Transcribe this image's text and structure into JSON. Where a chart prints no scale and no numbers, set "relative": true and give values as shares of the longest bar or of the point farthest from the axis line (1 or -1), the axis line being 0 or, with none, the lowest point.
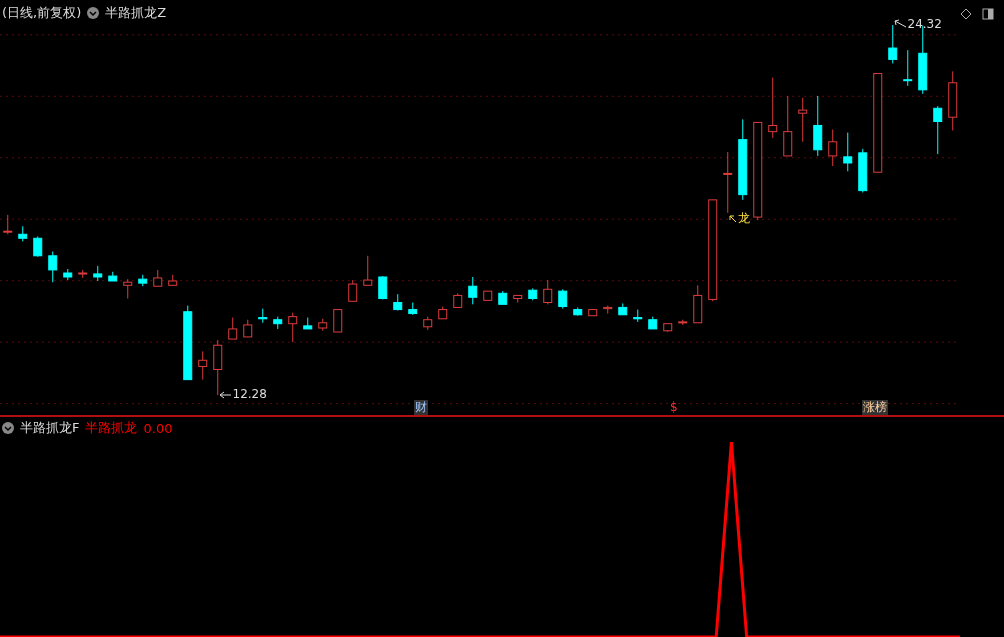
{
  "chart_data": [
    {
      "type": "candlestick",
      "title": "(日线,前复权)",
      "subtitle": "半路抓龙Z",
      "grid": "y",
      "yticks": [
        {
          "value": 12,
          "label": null
        },
        {
          "value": 14,
          "label": null
        },
        {
          "value": 16,
          "label": null
        },
        {
          "value": 18,
          "label": null
        },
        {
          "value": 20,
          "label": null
        },
        {
          "value": 22,
          "label": null
        },
        {
          "value": 24,
          "label": null
        }
      ],
      "categories": [
        null,
        null,
        null,
        null,
        null,
        null,
        null,
        null,
        null,
        null,
        null,
        null,
        null,
        null,
        null,
        null,
        null,
        null,
        null,
        null,
        null,
        null,
        null,
        null,
        null,
        null,
        null,
        null,
        null,
        null,
        null,
        null,
        null,
        null,
        null,
        null,
        null,
        null,
        null,
        null,
        null,
        null,
        null,
        null,
        null,
        null,
        null,
        null,
        null,
        null,
        null,
        null,
        null,
        null,
        null,
        null,
        null,
        null,
        null,
        null,
        null,
        null,
        null,
        null
      ],
      "ohlc": [
        [
          17.58,
          18.14,
          17.51,
          17.61
        ],
        [
          17.51,
          17.77,
          17.28,
          17.38
        ],
        [
          17.38,
          17.44,
          16.78,
          16.81
        ],
        [
          16.81,
          16.95,
          15.95,
          16.35
        ],
        [
          16.25,
          16.38,
          16.02,
          16.12
        ],
        [
          16.22,
          16.35,
          16.09,
          16.25
        ],
        [
          16.22,
          16.48,
          15.99,
          16.12
        ],
        [
          16.15,
          16.29,
          15.99,
          15.99
        ],
        [
          15.85,
          16.05,
          15.42,
          15.95
        ],
        [
          16.05,
          16.19,
          15.82,
          15.92
        ],
        [
          15.82,
          16.35,
          15.82,
          16.09
        ],
        [
          15.85,
          16.19,
          15.85,
          15.99
        ],
        [
          14.99,
          15.19,
          12.78,
          12.78
        ],
        [
          13.21,
          13.7,
          12.78,
          13.41
        ],
        [
          13.11,
          14.07,
          12.28,
          13.9
        ],
        [
          14.1,
          14.8,
          14.1,
          14.43
        ],
        [
          14.17,
          14.73,
          14.17,
          14.56
        ],
        [
          14.8,
          15.09,
          14.63,
          14.76
        ],
        [
          14.73,
          14.83,
          14.43,
          14.6
        ],
        [
          14.6,
          14.96,
          14.0,
          14.83
        ],
        [
          14.53,
          14.8,
          14.43,
          14.43
        ],
        [
          14.46,
          14.76,
          14.37,
          14.63
        ],
        [
          14.33,
          15.06,
          14.33,
          15.06
        ],
        [
          15.33,
          16.02,
          15.33,
          15.89
        ],
        [
          15.85,
          16.81,
          15.85,
          16.02
        ],
        [
          16.12,
          16.15,
          15.39,
          15.42
        ],
        [
          15.29,
          15.56,
          15.03,
          15.06
        ],
        [
          15.06,
          15.29,
          14.89,
          14.93
        ],
        [
          14.5,
          14.83,
          14.4,
          14.73
        ],
        [
          14.76,
          15.16,
          14.76,
          15.06
        ],
        [
          15.13,
          15.59,
          15.13,
          15.52
        ],
        [
          15.82,
          16.12,
          15.23,
          15.46
        ],
        [
          15.36,
          15.66,
          15.36,
          15.66
        ],
        [
          15.59,
          15.66,
          15.23,
          15.23
        ],
        [
          15.42,
          15.52,
          15.29,
          15.52
        ],
        [
          15.69,
          15.75,
          15.36,
          15.42
        ],
        [
          15.29,
          16.02,
          15.23,
          15.72
        ],
        [
          15.66,
          15.72,
          15.09,
          15.16
        ],
        [
          15.06,
          15.13,
          14.86,
          14.89
        ],
        [
          14.86,
          15.06,
          14.86,
          15.06
        ],
        [
          15.09,
          15.19,
          14.93,
          15.13
        ],
        [
          15.13,
          15.26,
          14.89,
          14.89
        ],
        [
          14.8,
          15.06,
          14.66,
          14.76
        ],
        [
          14.73,
          14.83,
          14.43,
          14.43
        ],
        [
          14.37,
          14.6,
          14.33,
          14.6
        ],
        [
          14.63,
          14.73,
          14.56,
          14.66
        ],
        [
          14.63,
          15.85,
          14.63,
          15.52
        ],
        [
          15.39,
          18.63,
          15.33,
          18.63
        ],
        [
          19.46,
          20.19,
          18.21,
          19.49
        ],
        [
          20.59,
          21.25,
          18.63,
          18.8
        ],
        [
          18.07,
          21.15,
          17.97,
          21.15
        ],
        [
          20.85,
          22.61,
          20.65,
          21.05
        ],
        [
          20.06,
          22.01,
          20.06,
          20.85
        ],
        [
          21.45,
          21.95,
          20.52,
          21.55
        ],
        [
          21.05,
          22.01,
          20.06,
          20.26
        ],
        [
          20.06,
          20.92,
          19.73,
          20.52
        ],
        [
          20.03,
          20.82,
          19.56,
          19.83
        ],
        [
          20.16,
          20.29,
          18.87,
          18.93
        ],
        [
          19.53,
          22.74,
          19.53,
          22.74
        ],
        [
          23.57,
          24.32,
          23.07,
          23.2
        ],
        [
          22.54,
          23.5,
          22.34,
          22.51
        ],
        [
          23.4,
          24.3,
          22.08,
          22.21
        ],
        [
          21.61,
          21.68,
          20.12,
          21.18
        ],
        [
          21.32,
          22.81,
          20.89,
          22.44
        ]
      ],
      "colors": [
        "#e03c3c",
        "#00ffff",
        "#00ffff",
        "#00ffff",
        "#00ffff",
        "#e03c3c",
        "#00ffff",
        "#00ffff",
        "#e03c3c",
        "#00ffff",
        "#e03c3c",
        "#e03c3c",
        "#00ffff",
        "#e03c3c",
        "#e03c3c",
        "#e03c3c",
        "#e03c3c",
        "#00ffff",
        "#00ffff",
        "#e03c3c",
        "#00ffff",
        "#e03c3c",
        "#e03c3c",
        "#e03c3c",
        "#e03c3c",
        "#00ffff",
        "#00ffff",
        "#00ffff",
        "#e03c3c",
        "#e03c3c",
        "#e03c3c",
        "#00ffff",
        "#e03c3c",
        "#00ffff",
        "#e03c3c",
        "#00ffff",
        "#e03c3c",
        "#00ffff",
        "#00ffff",
        "#e03c3c",
        "#e03c3c",
        "#00ffff",
        "#00ffff",
        "#00ffff",
        "#e03c3c",
        "#e03c3c",
        "#e03c3c",
        "#e03c3c",
        "#e03c3c",
        "#00ffff",
        "#e03c3c",
        "#e03c3c",
        "#e03c3c",
        "#e03c3c",
        "#00ffff",
        "#e03c3c",
        "#00ffff",
        "#00ffff",
        "#e03c3c",
        "#00ffff",
        "#00ffff",
        "#00ffff",
        "#00ffff",
        "#e03c3c"
      ],
      "annotations": [
        "12.28",
        "24.32",
        "龙",
        "财",
        "$",
        "涨榜"
      ]
    },
    {
      "type": "line",
      "title": "半路抓龙F",
      "relative": true,
      "legend": "top left",
      "categories": [
        null,
        null,
        null,
        null,
        null,
        null,
        null,
        null,
        null,
        null,
        null,
        null,
        null,
        null,
        null,
        null,
        null,
        null,
        null,
        null,
        null,
        null,
        null,
        null,
        null,
        null,
        null,
        null,
        null,
        null,
        null,
        null,
        null,
        null,
        null,
        null,
        null,
        null,
        null,
        null,
        null,
        null,
        null,
        null,
        null,
        null,
        null,
        null,
        null,
        null,
        null,
        null,
        null,
        null,
        null,
        null,
        null,
        null,
        null,
        null,
        null,
        null,
        null,
        null
      ],
      "series": [
        {
          "name": "半路抓龙",
          "color": "#ff0000",
          "values": [
            0,
            0,
            0,
            0,
            0,
            0,
            0,
            0,
            0,
            0,
            0,
            0,
            0,
            0,
            0,
            0,
            0,
            0,
            0,
            0,
            0,
            0,
            0,
            0,
            0,
            0,
            0,
            0,
            0,
            0,
            0,
            0,
            0,
            0,
            0,
            0,
            0,
            0,
            0,
            0,
            0,
            0,
            0,
            0,
            0,
            0,
            0,
            0,
            1,
            0,
            0,
            0,
            0,
            0,
            0,
            0,
            0,
            0,
            0,
            0,
            0,
            0,
            0,
            0
          ]
        }
      ],
      "annotations": [
        "0.00"
      ]
    }
  ]
}
